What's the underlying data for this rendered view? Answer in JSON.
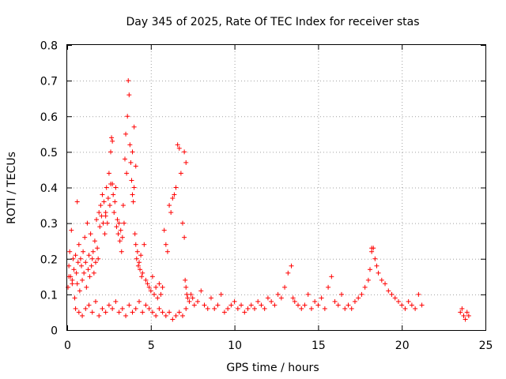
{
  "chart_data": {
    "type": "scatter",
    "title": "Day 345 of 2025, Rate Of TEC Index for receiver stas",
    "xlabel": "GPS time / hours",
    "ylabel": "ROTI / TECUs",
    "xlim": [
      0,
      25
    ],
    "ylim": [
      0,
      0.8
    ],
    "xticks": [
      "0",
      "5",
      "10",
      "15",
      "20",
      "25"
    ],
    "yticks": [
      "0",
      "0.1",
      "0.2",
      "0.3",
      "0.4",
      "0.5",
      "0.6",
      "0.7",
      "0.8"
    ],
    "grid": true,
    "marker": "+",
    "color": "#ff0000",
    "series": [
      {
        "x": [
          0.05,
          0.1,
          0.15,
          0.2,
          0.25,
          0.3,
          0.35,
          0.4,
          0.45,
          0.5,
          0.55,
          0.6,
          0.65,
          0.7,
          0.75,
          0.8,
          0.85,
          0.9,
          0.95,
          1.0,
          1.05,
          1.1,
          1.15,
          1.2,
          1.25,
          1.3,
          1.35,
          1.4,
          1.45,
          1.5,
          1.55,
          1.6,
          1.65,
          1.7,
          1.75,
          1.8,
          1.85,
          1.9,
          1.95,
          2.0,
          2.05,
          2.1,
          2.15,
          2.2,
          2.25,
          2.3,
          2.35,
          2.4,
          2.45,
          2.5,
          2.55,
          2.6,
          2.65,
          2.7,
          2.75,
          2.8,
          2.85,
          2.9,
          2.95,
          3.0,
          3.05,
          3.1,
          3.15,
          3.2,
          3.25,
          3.3,
          3.35,
          3.4,
          3.45,
          3.5,
          3.55,
          3.6,
          3.65,
          3.7,
          3.75,
          3.8,
          3.85,
          3.9,
          3.95,
          4.0,
          4.05,
          4.1,
          4.15,
          4.2,
          4.25,
          4.3,
          4.35,
          4.4,
          4.45,
          4.5,
          4.6,
          4.7,
          4.8,
          4.9,
          5.0,
          5.1,
          5.2,
          5.3,
          5.4,
          5.5,
          5.6,
          5.7,
          5.8,
          5.9,
          6.0,
          6.1,
          6.2,
          6.3,
          6.4,
          6.5,
          6.6,
          6.7,
          6.8,
          6.9,
          7.0,
          7.05,
          7.1,
          7.15,
          7.2,
          7.3,
          7.4,
          7.5,
          7.6,
          7.8,
          8.0,
          8.2,
          8.4,
          8.6,
          8.8,
          9.0,
          9.2,
          9.4,
          9.6,
          9.8,
          10.0,
          10.2,
          10.4,
          10.6,
          10.8,
          11.0,
          11.2,
          11.4,
          11.6,
          11.8,
          12.0,
          12.2,
          12.4,
          12.6,
          12.8,
          13.0,
          13.2,
          13.4,
          13.5,
          13.6,
          13.8,
          14.0,
          14.2,
          14.4,
          14.6,
          14.8,
          15.0,
          15.2,
          15.4,
          15.6,
          15.8,
          16.0,
          16.2,
          16.4,
          16.6,
          16.8,
          17.0,
          17.2,
          17.4,
          17.6,
          17.8,
          18.0,
          18.1,
          18.2,
          18.3,
          18.4,
          18.5,
          18.6,
          18.8,
          19.0,
          19.2,
          19.4,
          19.6,
          19.8,
          20.0,
          20.2,
          20.4,
          20.6,
          20.8,
          21.0,
          21.2,
          23.5,
          23.6,
          23.7,
          23.8,
          23.9,
          24.0,
          0.1,
          0.3,
          0.5,
          0.7,
          0.9,
          1.1,
          1.3,
          1.5,
          1.7,
          1.9,
          2.1,
          2.3,
          2.5,
          2.7,
          2.9,
          3.1,
          3.3,
          3.5,
          3.7,
          3.9,
          4.1,
          4.3,
          4.5,
          4.7,
          4.9,
          5.1,
          5.3,
          5.5,
          5.7,
          5.9,
          6.1,
          6.3,
          6.5,
          6.7,
          6.9,
          7.1,
          0.6,
          2.3,
          2.6,
          2.7,
          3.9,
          4.0,
          4.1,
          7.0,
          7.1,
          18.2
        ],
        "y": [
          0.12,
          0.18,
          0.22,
          0.15,
          0.28,
          0.14,
          0.2,
          0.17,
          0.09,
          0.21,
          0.16,
          0.13,
          0.19,
          0.24,
          0.11,
          0.2,
          0.18,
          0.14,
          0.22,
          0.16,
          0.26,
          0.19,
          0.12,
          0.3,
          0.17,
          0.21,
          0.15,
          0.27,
          0.18,
          0.2,
          0.22,
          0.16,
          0.25,
          0.19,
          0.31,
          0.23,
          0.2,
          0.33,
          0.29,
          0.35,
          0.32,
          0.38,
          0.3,
          0.36,
          0.27,
          0.33,
          0.4,
          0.3,
          0.37,
          0.44,
          0.35,
          0.5,
          0.54,
          0.41,
          0.38,
          0.33,
          0.36,
          0.4,
          0.29,
          0.31,
          0.27,
          0.3,
          0.25,
          0.28,
          0.22,
          0.26,
          0.35,
          0.3,
          0.48,
          0.55,
          0.44,
          0.6,
          0.7,
          0.66,
          0.52,
          0.47,
          0.42,
          0.38,
          0.36,
          0.4,
          0.27,
          0.24,
          0.2,
          0.22,
          0.18,
          0.19,
          0.17,
          0.21,
          0.15,
          0.16,
          0.24,
          0.14,
          0.13,
          0.12,
          0.11,
          0.15,
          0.1,
          0.12,
          0.09,
          0.13,
          0.1,
          0.12,
          0.28,
          0.24,
          0.22,
          0.35,
          0.33,
          0.37,
          0.38,
          0.4,
          0.52,
          0.51,
          0.44,
          0.3,
          0.26,
          0.14,
          0.12,
          0.1,
          0.09,
          0.08,
          0.1,
          0.09,
          0.07,
          0.08,
          0.11,
          0.07,
          0.06,
          0.09,
          0.06,
          0.07,
          0.1,
          0.05,
          0.06,
          0.07,
          0.08,
          0.06,
          0.07,
          0.05,
          0.06,
          0.07,
          0.06,
          0.08,
          0.07,
          0.06,
          0.09,
          0.08,
          0.07,
          0.1,
          0.09,
          0.12,
          0.16,
          0.18,
          0.09,
          0.08,
          0.07,
          0.06,
          0.07,
          0.1,
          0.06,
          0.08,
          0.07,
          0.09,
          0.06,
          0.12,
          0.15,
          0.08,
          0.07,
          0.1,
          0.06,
          0.07,
          0.06,
          0.08,
          0.09,
          0.1,
          0.12,
          0.14,
          0.17,
          0.22,
          0.23,
          0.2,
          0.18,
          0.16,
          0.14,
          0.13,
          0.11,
          0.1,
          0.09,
          0.08,
          0.07,
          0.06,
          0.08,
          0.07,
          0.06,
          0.1,
          0.07,
          0.05,
          0.06,
          0.04,
          0.03,
          0.05,
          0.04,
          0.15,
          0.13,
          0.06,
          0.05,
          0.04,
          0.06,
          0.07,
          0.05,
          0.08,
          0.04,
          0.06,
          0.05,
          0.07,
          0.06,
          0.08,
          0.05,
          0.06,
          0.04,
          0.07,
          0.05,
          0.06,
          0.08,
          0.05,
          0.07,
          0.06,
          0.05,
          0.04,
          0.06,
          0.05,
          0.04,
          0.05,
          0.03,
          0.04,
          0.05,
          0.04,
          0.06,
          0.36,
          0.32,
          0.41,
          0.53,
          0.5,
          0.57,
          0.46,
          0.5,
          0.47,
          0.23
        ]
      }
    ]
  }
}
